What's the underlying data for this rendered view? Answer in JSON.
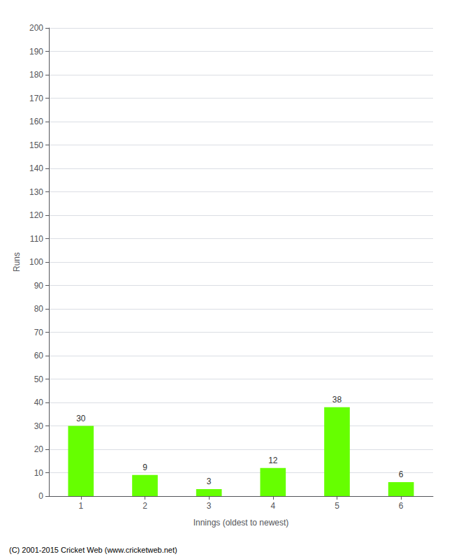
{
  "chart_data": {
    "type": "bar",
    "categories": [
      "1",
      "2",
      "3",
      "4",
      "5",
      "6"
    ],
    "values": [
      30,
      9,
      3,
      12,
      38,
      6
    ],
    "color": "#66ff00",
    "xlabel": "Innings (oldest to newest)",
    "ylabel": "Runs",
    "ylim": [
      0,
      200
    ],
    "yticks": [
      0,
      10,
      20,
      30,
      40,
      50,
      60,
      70,
      80,
      90,
      100,
      110,
      120,
      130,
      140,
      150,
      160,
      170,
      180,
      190,
      200
    ],
    "grid": true,
    "data_labels": true,
    "footer": "(C) 2001-2015 Cricket Web (www.cricketweb.net)"
  }
}
